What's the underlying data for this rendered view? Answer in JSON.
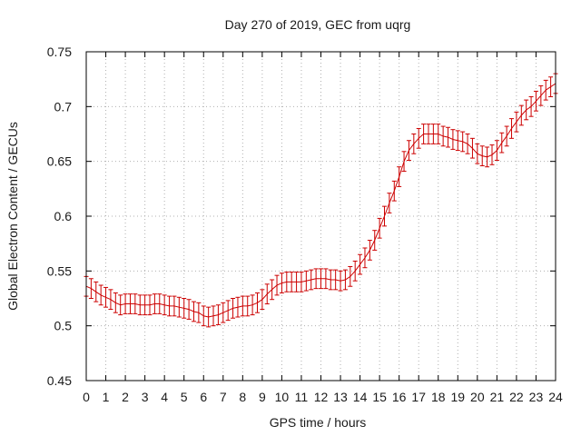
{
  "chart_data": {
    "type": "line",
    "title": "Day 270 of 2019, GEC from uqrg",
    "xlabel": "GPS time / hours",
    "ylabel": "Global Electron Content / GECUs",
    "xlim": [
      0,
      24
    ],
    "ylim": [
      0.45,
      0.75
    ],
    "xticks": [
      "0",
      "1",
      "2",
      "3",
      "4",
      "5",
      "6",
      "7",
      "8",
      "9",
      "10",
      "11",
      "12",
      "13",
      "14",
      "15",
      "16",
      "17",
      "18",
      "19",
      "20",
      "21",
      "22",
      "23",
      "24"
    ],
    "yticks": [
      "0.45",
      "0.5",
      "0.55",
      "0.6",
      "0.65",
      "0.7",
      "0.75"
    ],
    "grid": true,
    "legend": "none",
    "series_color": "#cc0000",
    "error": 0.009,
    "x": [
      0,
      0.25,
      0.5,
      0.75,
      1,
      1.25,
      1.5,
      1.75,
      2,
      2.25,
      2.5,
      2.75,
      3,
      3.25,
      3.5,
      3.75,
      4,
      4.25,
      4.5,
      4.75,
      5,
      5.25,
      5.5,
      5.75,
      6,
      6.25,
      6.5,
      6.75,
      7,
      7.25,
      7.5,
      7.75,
      8,
      8.25,
      8.5,
      8.75,
      9,
      9.25,
      9.5,
      9.75,
      10,
      10.25,
      10.5,
      10.75,
      11,
      11.25,
      11.5,
      11.75,
      12,
      12.25,
      12.5,
      12.75,
      13,
      13.25,
      13.5,
      13.75,
      14,
      14.25,
      14.5,
      14.75,
      15,
      15.25,
      15.5,
      15.75,
      16,
      16.25,
      16.5,
      16.75,
      17,
      17.25,
      17.5,
      17.75,
      18,
      18.25,
      18.5,
      18.75,
      19,
      19.25,
      19.5,
      19.75,
      20,
      20.25,
      20.5,
      20.75,
      21,
      21.25,
      21.5,
      21.75,
      22,
      22.25,
      22.5,
      22.75,
      23,
      23.25,
      23.5,
      23.75,
      24
    ],
    "y": [
      0.536,
      0.534,
      0.531,
      0.528,
      0.526,
      0.524,
      0.521,
      0.519,
      0.52,
      0.52,
      0.52,
      0.519,
      0.519,
      0.519,
      0.52,
      0.52,
      0.519,
      0.518,
      0.518,
      0.517,
      0.516,
      0.515,
      0.513,
      0.512,
      0.509,
      0.508,
      0.509,
      0.51,
      0.512,
      0.514,
      0.516,
      0.517,
      0.518,
      0.518,
      0.519,
      0.521,
      0.524,
      0.529,
      0.533,
      0.537,
      0.539,
      0.54,
      0.54,
      0.54,
      0.54,
      0.541,
      0.542,
      0.543,
      0.543,
      0.543,
      0.542,
      0.542,
      0.541,
      0.542,
      0.545,
      0.55,
      0.556,
      0.562,
      0.569,
      0.578,
      0.589,
      0.6,
      0.612,
      0.623,
      0.636,
      0.65,
      0.66,
      0.666,
      0.671,
      0.675,
      0.675,
      0.675,
      0.675,
      0.673,
      0.672,
      0.67,
      0.669,
      0.668,
      0.666,
      0.662,
      0.657,
      0.655,
      0.654,
      0.656,
      0.66,
      0.667,
      0.673,
      0.68,
      0.686,
      0.692,
      0.697,
      0.7,
      0.705,
      0.71,
      0.715,
      0.718,
      0.721
    ]
  }
}
